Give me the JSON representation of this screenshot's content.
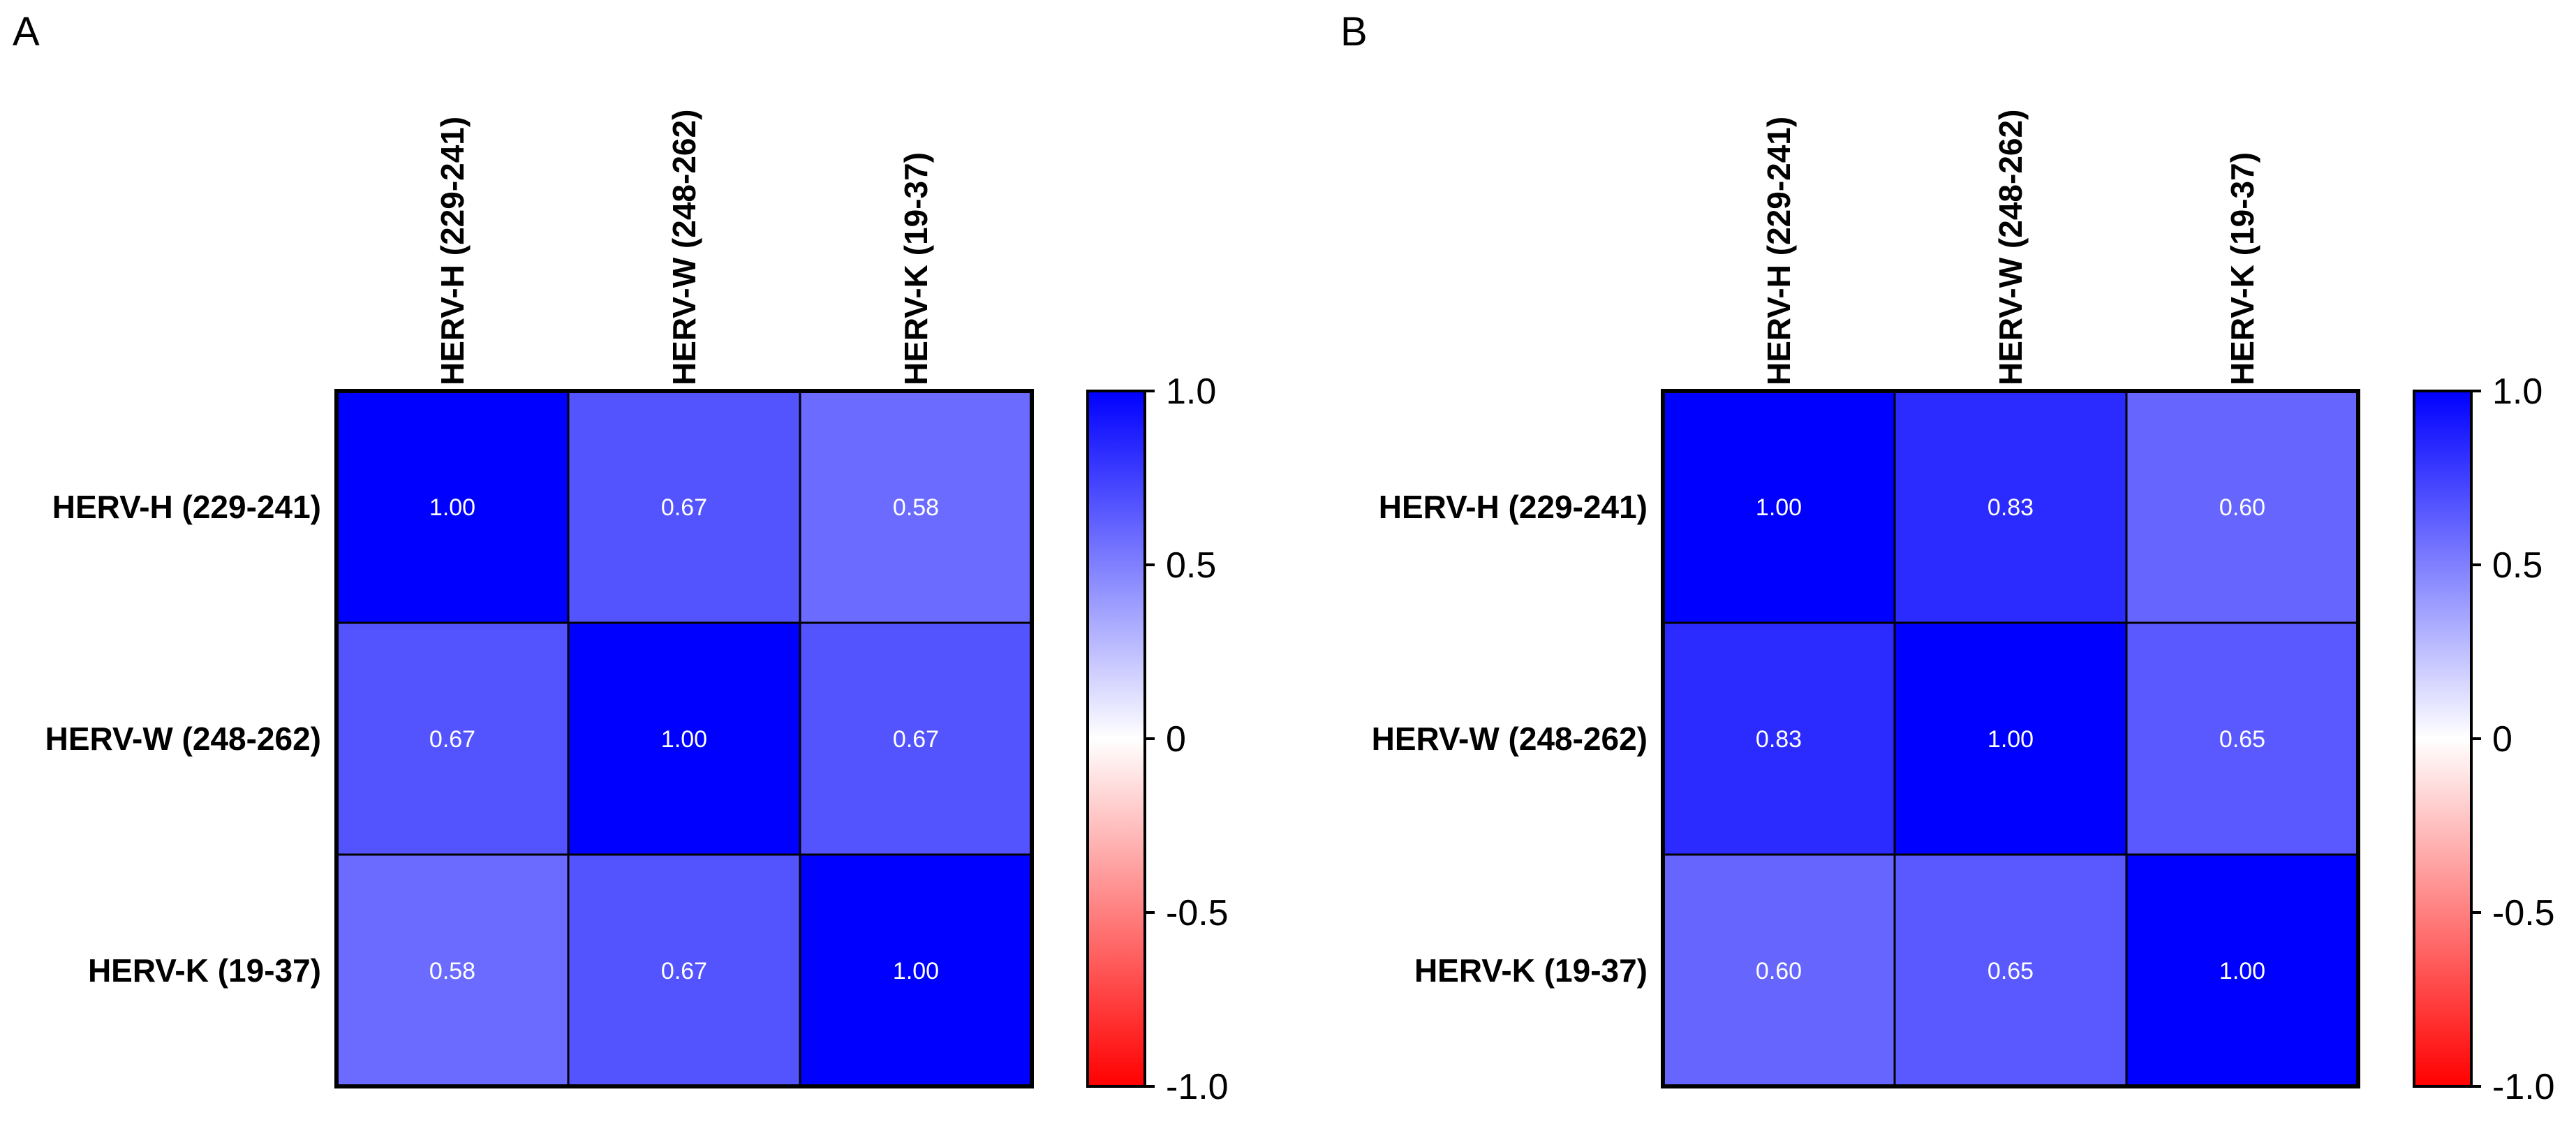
{
  "chart_data": [
    {
      "type": "heatmap",
      "panel": "A",
      "rows": [
        "HERV-H (229-241)",
        "HERV-W (248-262)",
        "HERV-K (19-37)"
      ],
      "columns": [
        "HERV-H (229-241)",
        "HERV-W (248-262)",
        "HERV-K (19-37)"
      ],
      "values": [
        [
          1.0,
          0.67,
          0.58
        ],
        [
          0.67,
          1.0,
          0.67
        ],
        [
          0.58,
          0.67,
          1.0
        ]
      ],
      "value_labels": [
        [
          "1.00",
          "0.67",
          "0.58"
        ],
        [
          "0.67",
          "1.00",
          "0.67"
        ],
        [
          "0.58",
          "0.67",
          "1.00"
        ]
      ],
      "colorbar": {
        "range": [
          -1.0,
          1.0
        ],
        "ticks": [
          1.0,
          0.5,
          0,
          -0.5,
          -1.0
        ],
        "tick_labels": [
          "1.0",
          "0.5",
          "0",
          "-0.5",
          "-1.0"
        ],
        "colors": {
          "low": "#ff0000",
          "mid": "#ffffff",
          "high": "#0000ff"
        }
      }
    },
    {
      "type": "heatmap",
      "panel": "B",
      "rows": [
        "HERV-H (229-241)",
        "HERV-W (248-262)",
        "HERV-K (19-37)"
      ],
      "columns": [
        "HERV-H (229-241)",
        "HERV-W (248-262)",
        "HERV-K (19-37)"
      ],
      "values": [
        [
          1.0,
          0.83,
          0.6
        ],
        [
          0.83,
          1.0,
          0.65
        ],
        [
          0.6,
          0.65,
          1.0
        ]
      ],
      "value_labels": [
        [
          "1.00",
          "0.83",
          "0.60"
        ],
        [
          "0.83",
          "1.00",
          "0.65"
        ],
        [
          "0.60",
          "0.65",
          "1.00"
        ]
      ],
      "colorbar": {
        "range": [
          -1.0,
          1.0
        ],
        "ticks": [
          1.0,
          0.5,
          0,
          -0.5,
          -1.0
        ],
        "tick_labels": [
          "1.0",
          "0.5",
          "0",
          "-0.5",
          "-1.0"
        ],
        "colors": {
          "low": "#ff0000",
          "mid": "#ffffff",
          "high": "#0000ff"
        }
      }
    }
  ]
}
